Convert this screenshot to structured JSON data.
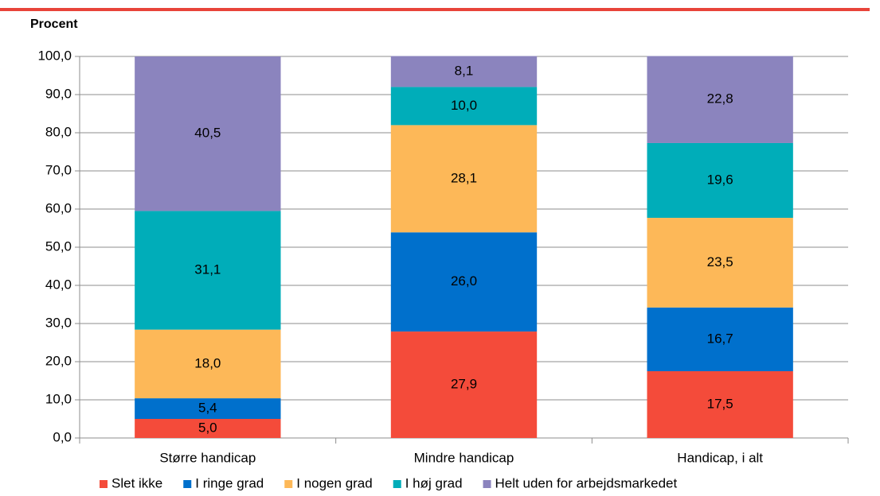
{
  "chart_data": {
    "type": "stacked_bar",
    "ylabel": "Procent",
    "categories": [
      "Større handicap",
      "Mindre handicap",
      "Handicap, i alt"
    ],
    "series": [
      {
        "name": "Slet ikke",
        "color": "#f44b3a",
        "values": [
          5.0,
          27.9,
          17.5
        ],
        "value_labels": [
          "5,0",
          "27,9",
          "17,5"
        ]
      },
      {
        "name": "I ringe grad",
        "color": "#0070cc",
        "values": [
          5.4,
          26.0,
          16.7
        ],
        "value_labels": [
          "5,4",
          "26,0",
          "16,7"
        ]
      },
      {
        "name": "I nogen grad",
        "color": "#fdb858",
        "values": [
          18.0,
          28.1,
          23.5
        ],
        "value_labels": [
          "18,0",
          "28,1",
          "23,5"
        ]
      },
      {
        "name": "I høj grad",
        "color": "#00adb9",
        "values": [
          31.1,
          10.0,
          19.6
        ],
        "value_labels": [
          "31,1",
          "10,0",
          "19,6"
        ]
      },
      {
        "name": "Helt uden for arbejdsmarkedet",
        "color": "#8b84be",
        "values": [
          40.5,
          8.1,
          22.8
        ],
        "value_labels": [
          "40,5",
          "8,1",
          "22,8"
        ]
      }
    ],
    "ylim": [
      0,
      100
    ],
    "yticks": [
      {
        "value": 0,
        "label": "0,0"
      },
      {
        "value": 10,
        "label": "10,0"
      },
      {
        "value": 20,
        "label": "20,0"
      },
      {
        "value": 30,
        "label": "30,0"
      },
      {
        "value": 40,
        "label": "40,0"
      },
      {
        "value": 50,
        "label": "50,0"
      },
      {
        "value": 60,
        "label": "60,0"
      },
      {
        "value": 70,
        "label": "70,0"
      },
      {
        "value": 80,
        "label": "80,0"
      },
      {
        "value": 90,
        "label": "90,0"
      },
      {
        "value": 100,
        "label": "100,0"
      }
    ],
    "grid": true,
    "legend": "bottom"
  }
}
